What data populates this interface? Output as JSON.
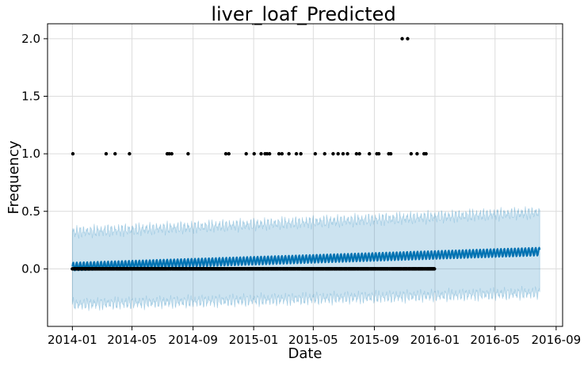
{
  "chart_data": {
    "type": "scatter",
    "title": "liver_loaf_Predicted",
    "xlabel": "Date",
    "ylabel": "Frequency",
    "x_range": [
      "2013-11-12",
      "2016-09-14"
    ],
    "ylim": [
      -0.5,
      2.13
    ],
    "x_ticks": [
      "2014-01",
      "2014-05",
      "2014-09",
      "2015-01",
      "2015-05",
      "2015-09",
      "2016-01",
      "2016-05",
      "2016-09"
    ],
    "y_ticks": [
      0.0,
      0.5,
      1.0,
      1.5,
      2.0
    ],
    "y_tick_labels": [
      "0.0",
      "0.5",
      "1.0",
      "1.5",
      "2.0"
    ],
    "grid": true,
    "legend": "none",
    "colors": {
      "observed": "#000000",
      "forecast_line": "#0072B2",
      "uncertainty_band": "#0072B2"
    },
    "observed": {
      "start_date": "2014-01-01",
      "end_date": "2015-12-31",
      "baseline_value": 0,
      "points": [
        {
          "x": "2014-01-02",
          "y": 1
        },
        {
          "x": "2014-03-10",
          "y": 1
        },
        {
          "x": "2014-03-28",
          "y": 1
        },
        {
          "x": "2014-04-26",
          "y": 1
        },
        {
          "x": "2014-07-11",
          "y": 1
        },
        {
          "x": "2014-07-15",
          "y": 1
        },
        {
          "x": "2014-07-20",
          "y": 1
        },
        {
          "x": "2014-08-22",
          "y": 1
        },
        {
          "x": "2014-11-06",
          "y": 1
        },
        {
          "x": "2014-11-12",
          "y": 1
        },
        {
          "x": "2014-12-17",
          "y": 1
        },
        {
          "x": "2015-01-02",
          "y": 1
        },
        {
          "x": "2015-01-16",
          "y": 1
        },
        {
          "x": "2015-01-24",
          "y": 1
        },
        {
          "x": "2015-01-28",
          "y": 1
        },
        {
          "x": "2015-02-02",
          "y": 1
        },
        {
          "x": "2015-02-21",
          "y": 1
        },
        {
          "x": "2015-02-27",
          "y": 1
        },
        {
          "x": "2015-03-13",
          "y": 1
        },
        {
          "x": "2015-03-28",
          "y": 1
        },
        {
          "x": "2015-04-06",
          "y": 1
        },
        {
          "x": "2015-05-05",
          "y": 1
        },
        {
          "x": "2015-05-24",
          "y": 1
        },
        {
          "x": "2015-06-10",
          "y": 1
        },
        {
          "x": "2015-06-20",
          "y": 1
        },
        {
          "x": "2015-06-30",
          "y": 1
        },
        {
          "x": "2015-07-09",
          "y": 1
        },
        {
          "x": "2015-07-27",
          "y": 1
        },
        {
          "x": "2015-08-02",
          "y": 1
        },
        {
          "x": "2015-08-22",
          "y": 1
        },
        {
          "x": "2015-09-06",
          "y": 1
        },
        {
          "x": "2015-09-10",
          "y": 1
        },
        {
          "x": "2015-09-30",
          "y": 1
        },
        {
          "x": "2015-10-04",
          "y": 1
        },
        {
          "x": "2015-10-27",
          "y": 2
        },
        {
          "x": "2015-11-07",
          "y": 2
        },
        {
          "x": "2015-11-14",
          "y": 1
        },
        {
          "x": "2015-11-26",
          "y": 1
        },
        {
          "x": "2015-12-10",
          "y": 1
        },
        {
          "x": "2015-12-14",
          "y": 1
        }
      ]
    },
    "forecast": {
      "start_date": "2014-01-01",
      "end_date": "2016-07-30",
      "trend_start": 0.02,
      "trend_end": 0.15,
      "weekly_amplitude": 0.035,
      "upper_start": 0.32,
      "upper_end": 0.49,
      "lower_start": -0.31,
      "lower_end": -0.21
    }
  }
}
